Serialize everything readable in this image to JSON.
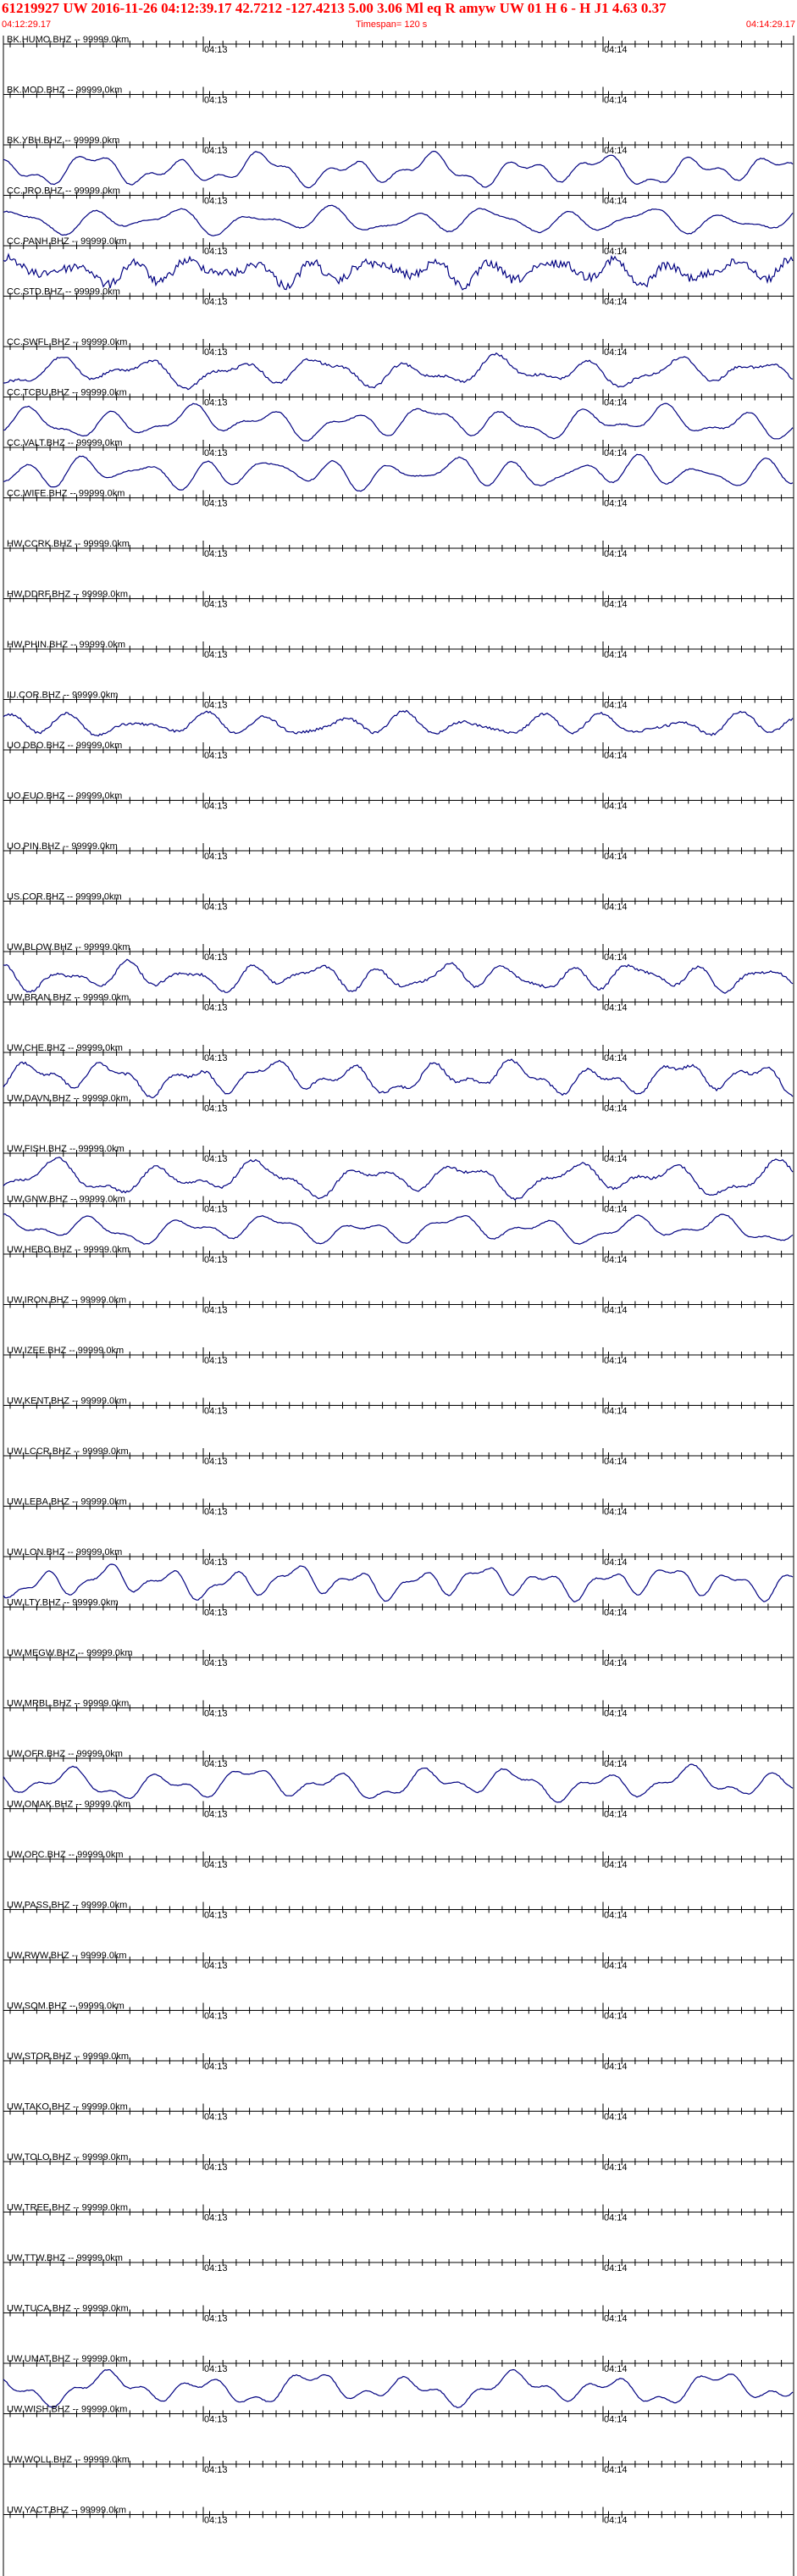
{
  "header": {
    "title": "61219927 UW 2016-11-26 04:12:39.17    42.7212 -127.4213    5.00  3.06 Ml  eq  R amyw     UW 01  H   6  -  H J1     4.63  0.37",
    "start_time": "04:12:29.17",
    "timespan": "Timespan= 120 s",
    "end_time": "04:14:29.17"
  },
  "tick_labels": {
    "first": "04:13",
    "second": "04:14"
  },
  "colors": {
    "header_text": "#ff0000",
    "trace": "#000080",
    "axis": "#000000"
  },
  "stations": [
    {
      "label": "BK.HUMO.BHZ -- 99999.0km",
      "has_trace": false
    },
    {
      "label": "BK.MOD.BHZ -- 99999.0km",
      "has_trace": false
    },
    {
      "label": "BK.YBH.BHZ -- 99999.0km",
      "has_trace": true
    },
    {
      "label": "CC.JRO.BHZ -- 99999.0km",
      "has_trace": true
    },
    {
      "label": "CC.PANH.BHZ -- 99999.0km",
      "has_trace": true
    },
    {
      "label": "CC.STD.BHZ -- 99999.0km",
      "has_trace": false
    },
    {
      "label": "CC.SWFL.BHZ -- 99999.0km",
      "has_trace": true
    },
    {
      "label": "CC.TCBU.BHZ -- 99999.0km",
      "has_trace": true
    },
    {
      "label": "CC.VALT.BHZ -- 99999.0km",
      "has_trace": true
    },
    {
      "label": "CC.WIFE.BHZ -- 99999.0km",
      "has_trace": false
    },
    {
      "label": "HW.CCRK.BHZ -- 99999.0km",
      "has_trace": false
    },
    {
      "label": "HW.DDRF.BHZ -- 99999.0km",
      "has_trace": false
    },
    {
      "label": "HW.PHIN.BHZ -- 99999.0km",
      "has_trace": false
    },
    {
      "label": "IU.COR.BHZ -- 99999.0km",
      "has_trace": true
    },
    {
      "label": "UO.DBO.BHZ -- 99999.0km",
      "has_trace": false
    },
    {
      "label": "UO.EUO.BHZ -- 99999.0km",
      "has_trace": false
    },
    {
      "label": "UO.PIN.BHZ -- 99999.0km",
      "has_trace": false
    },
    {
      "label": "US.COR.BHZ -- 99999.0km",
      "has_trace": false
    },
    {
      "label": "UW.BLOW.BHZ -- 99999.0km",
      "has_trace": true
    },
    {
      "label": "UW.BRAN.BHZ -- 99999.0km",
      "has_trace": false
    },
    {
      "label": "UW.CHE.BHZ -- 99999.0km",
      "has_trace": true
    },
    {
      "label": "UW.DAVN.BHZ -- 99999.0km",
      "has_trace": false
    },
    {
      "label": "UW.FISH.BHZ -- 99999.0km",
      "has_trace": true
    },
    {
      "label": "UW.GNW.BHZ -- 99999.0km",
      "has_trace": true
    },
    {
      "label": "UW.HEBO.BHZ -- 99999.0km",
      "has_trace": false
    },
    {
      "label": "UW.IRON.BHZ -- 99999.0km",
      "has_trace": false
    },
    {
      "label": "UW.IZEE.BHZ -- 99999.0km",
      "has_trace": false
    },
    {
      "label": "UW.KENT.BHZ -- 99999.0km",
      "has_trace": false
    },
    {
      "label": "UW.LCCR.BHZ -- 99999.0km",
      "has_trace": false
    },
    {
      "label": "UW.LEBA.BHZ -- 99999.0km",
      "has_trace": false
    },
    {
      "label": "UW.LON.BHZ -- 99999.0km",
      "has_trace": true
    },
    {
      "label": "UW.LTY.BHZ -- 99999.0km",
      "has_trace": false
    },
    {
      "label": "UW.MEGW.BHZ -- 99999.0km",
      "has_trace": false
    },
    {
      "label": "UW.MRBL.BHZ -- 99999.0km",
      "has_trace": false
    },
    {
      "label": "UW.OFR.BHZ -- 99999.0km",
      "has_trace": true
    },
    {
      "label": "UW.OMAK.BHZ -- 99999.0km",
      "has_trace": false
    },
    {
      "label": "UW.OPC.BHZ -- 99999.0km",
      "has_trace": false
    },
    {
      "label": "UW.PASS.BHZ -- 99999.0km",
      "has_trace": false
    },
    {
      "label": "UW.RWW.BHZ -- 99999.0km",
      "has_trace": false
    },
    {
      "label": "UW.SQM.BHZ -- 99999.0km",
      "has_trace": false
    },
    {
      "label": "UW.STOR.BHZ -- 99999.0km",
      "has_trace": false
    },
    {
      "label": "UW.TAKO.BHZ -- 99999.0km",
      "has_trace": false
    },
    {
      "label": "UW.TOLO.BHZ -- 99999.0km",
      "has_trace": false
    },
    {
      "label": "UW.TREE.BHZ -- 99999.0km",
      "has_trace": false
    },
    {
      "label": "UW.TTW.BHZ -- 99999.0km",
      "has_trace": false
    },
    {
      "label": "UW.TUCA.BHZ -- 99999.0km",
      "has_trace": false
    },
    {
      "label": "UW.UMAT.BHZ -- 99999.0km",
      "has_trace": true
    },
    {
      "label": "UW.WISH.BHZ -- 99999.0km",
      "has_trace": false
    },
    {
      "label": "UW.WOLL.BHZ -- 99999.0km",
      "has_trace": false
    },
    {
      "label": "UW.YACT.BHZ -- 99999.0km",
      "has_trace": false
    }
  ]
}
